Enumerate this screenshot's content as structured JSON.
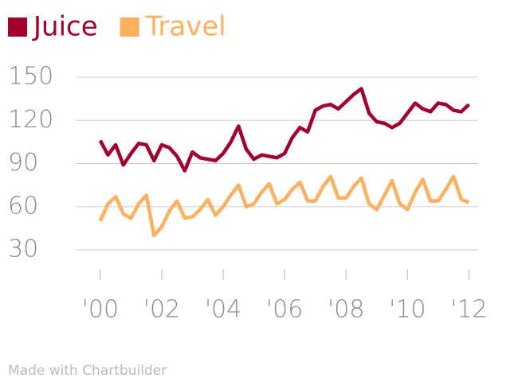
{
  "chart_data": {
    "type": "line",
    "x": [
      2000,
      2000.25,
      2000.5,
      2000.75,
      2001,
      2001.25,
      2001.5,
      2001.75,
      2002,
      2002.25,
      2002.5,
      2002.75,
      2003,
      2003.25,
      2003.5,
      2003.75,
      2004,
      2004.25,
      2004.5,
      2004.75,
      2005,
      2005.25,
      2005.5,
      2005.75,
      2006,
      2006.25,
      2006.5,
      2006.75,
      2007,
      2007.25,
      2007.5,
      2007.75,
      2008,
      2008.25,
      2008.5,
      2008.75,
      2009,
      2009.25,
      2009.5,
      2009.75,
      2010,
      2010.25,
      2010.5,
      2010.75,
      2011,
      2011.25,
      2011.5,
      2011.75,
      2012
    ],
    "series": [
      {
        "name": "Juice",
        "color": "#a3002e",
        "values": [
          106,
          96,
          103,
          89,
          97,
          104,
          103,
          92,
          103,
          101,
          95,
          85,
          98,
          94,
          93,
          92,
          97,
          105,
          116,
          100,
          93,
          96,
          95,
          94,
          97,
          108,
          115,
          112,
          127,
          130,
          131,
          128,
          133,
          138,
          142,
          125,
          119,
          118,
          115,
          118,
          125,
          132,
          128,
          126,
          132,
          131,
          127,
          126,
          131
        ]
      },
      {
        "name": "Travel",
        "color": "#fdb05e",
        "values": [
          50,
          62,
          67,
          55,
          52,
          62,
          68,
          40,
          46,
          57,
          64,
          52,
          53,
          58,
          65,
          54,
          60,
          68,
          75,
          60,
          62,
          70,
          76,
          62,
          65,
          72,
          77,
          64,
          64,
          74,
          81,
          66,
          66,
          74,
          80,
          62,
          58,
          68,
          78,
          62,
          58,
          70,
          79,
          64,
          64,
          72,
          81,
          65,
          63
        ]
      }
    ],
    "xlim": [
      1999.2,
      2012.3
    ],
    "xticks": [
      {
        "value": 2000,
        "label": "'00"
      },
      {
        "value": 2002,
        "label": "'02"
      },
      {
        "value": 2004,
        "label": "'04"
      },
      {
        "value": 2006,
        "label": "'06"
      },
      {
        "value": 2008,
        "label": "'08"
      },
      {
        "value": 2010,
        "label": "'10"
      },
      {
        "value": 2012,
        "label": "'12"
      }
    ],
    "ylim": [
      30,
      150
    ],
    "yticks": [
      30,
      60,
      90,
      120,
      150
    ],
    "grid": true,
    "source": "Made with Chartbuilder"
  }
}
